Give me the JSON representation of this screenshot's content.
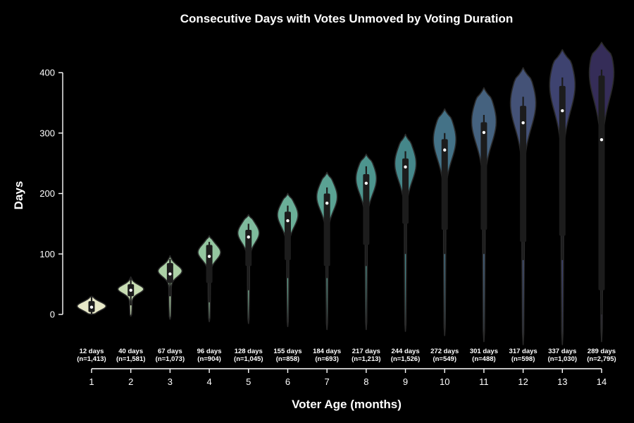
{
  "chart_data": {
    "type": "violin",
    "title": "Consecutive Days with Votes Unmoved by Voting Duration",
    "xlabel": "Voter Age (months)",
    "ylabel": "Days",
    "ylim": [
      -40,
      450
    ],
    "yticks": [
      0,
      100,
      200,
      300,
      400
    ],
    "categories": [
      "1",
      "2",
      "3",
      "4",
      "5",
      "6",
      "7",
      "8",
      "9",
      "10",
      "11",
      "12",
      "13",
      "14"
    ],
    "annotations": [
      {
        "line1": "12 days",
        "line2": "(n=1,413)"
      },
      {
        "line1": "40 days",
        "line2": "(n=1,581)"
      },
      {
        "line1": "67 days",
        "line2": "(n=1,073)"
      },
      {
        "line1": "96 days",
        "line2": "(n=904)"
      },
      {
        "line1": "128 days",
        "line2": "(n=1,045)"
      },
      {
        "line1": "155 days",
        "line2": "(n=858)"
      },
      {
        "line1": "184 days",
        "line2": "(n=693)"
      },
      {
        "line1": "217 days",
        "line2": "(n=1,213)"
      },
      {
        "line1": "244 days",
        "line2": "(n=1,526)"
      },
      {
        "line1": "272 days",
        "line2": "(n=549)"
      },
      {
        "line1": "301 days",
        "line2": "(n=488)"
      },
      {
        "line1": "317 days",
        "line2": "(n=598)"
      },
      {
        "line1": "337 days",
        "line2": "(n=1,030)"
      },
      {
        "line1": "289 days",
        "line2": "(n=2,795)"
      }
    ],
    "violins": [
      {
        "min": 0,
        "max": 30,
        "peak": 14,
        "peak_width": 0.68,
        "median": 12,
        "q1": 4,
        "q3": 22,
        "wmin": 0,
        "wmax": 30,
        "tail_min": 0,
        "color": "#e8e9c8"
      },
      {
        "min": -3,
        "max": 62,
        "peak": 42,
        "peak_width": 0.62,
        "median": 40,
        "q1": 30,
        "q3": 50,
        "wmin": 15,
        "wmax": 60,
        "tail_min": -3,
        "color": "#c9deb4"
      },
      {
        "min": -8,
        "max": 97,
        "peak": 72,
        "peak_width": 0.58,
        "median": 67,
        "q1": 52,
        "q3": 85,
        "wmin": 30,
        "wmax": 92,
        "tail_min": -8,
        "color": "#acd1a6"
      },
      {
        "min": -12,
        "max": 130,
        "peak": 103,
        "peak_width": 0.55,
        "median": 96,
        "q1": 52,
        "q3": 115,
        "wmin": 20,
        "wmax": 120,
        "tail_min": -12,
        "color": "#94c6a0"
      },
      {
        "min": -15,
        "max": 165,
        "peak": 135,
        "peak_width": 0.52,
        "median": 128,
        "q1": 80,
        "q3": 140,
        "wmin": 40,
        "wmax": 150,
        "tail_min": -15,
        "color": "#7fbb9d"
      },
      {
        "min": -20,
        "max": 200,
        "peak": 165,
        "peak_width": 0.5,
        "median": 155,
        "q1": 90,
        "q3": 170,
        "wmin": 60,
        "wmax": 180,
        "tail_min": -20,
        "color": "#6aaf98"
      },
      {
        "min": -25,
        "max": 235,
        "peak": 195,
        "peak_width": 0.5,
        "median": 184,
        "q1": 80,
        "q3": 200,
        "wmin": 60,
        "wmax": 210,
        "tail_min": -25,
        "color": "#5aa293"
      },
      {
        "min": -25,
        "max": 265,
        "peak": 225,
        "peak_width": 0.5,
        "median": 217,
        "q1": 115,
        "q3": 232,
        "wmin": 80,
        "wmax": 245,
        "tail_min": -25,
        "color": "#4d958e"
      },
      {
        "min": -28,
        "max": 298,
        "peak": 250,
        "peak_width": 0.52,
        "median": 244,
        "q1": 150,
        "q3": 258,
        "wmin": 100,
        "wmax": 270,
        "tail_min": -28,
        "color": "#45878a"
      },
      {
        "min": -35,
        "max": 340,
        "peak": 290,
        "peak_width": 0.55,
        "median": 272,
        "q1": 140,
        "q3": 290,
        "wmin": 100,
        "wmax": 300,
        "tail_min": -35,
        "color": "#447287"
      },
      {
        "min": -45,
        "max": 375,
        "peak": 320,
        "peak_width": 0.6,
        "median": 301,
        "q1": 140,
        "q3": 318,
        "wmin": 100,
        "wmax": 330,
        "tail_min": -45,
        "color": "#45627f"
      },
      {
        "min": -50,
        "max": 408,
        "peak": 350,
        "peak_width": 0.62,
        "median": 317,
        "q1": 120,
        "q3": 345,
        "wmin": 90,
        "wmax": 360,
        "tail_min": -50,
        "color": "#445277"
      },
      {
        "min": -50,
        "max": 438,
        "peak": 380,
        "peak_width": 0.62,
        "median": 337,
        "q1": 130,
        "q3": 378,
        "wmin": 90,
        "wmax": 392,
        "tail_min": -50,
        "color": "#3e4370"
      },
      {
        "min": -45,
        "max": 450,
        "peak": 400,
        "peak_width": 0.6,
        "median": 289,
        "q1": 40,
        "q3": 395,
        "wmin": 0,
        "wmax": 405,
        "tail_min": -45,
        "color": "#352d58"
      }
    ],
    "grid": false,
    "legend": "none"
  }
}
